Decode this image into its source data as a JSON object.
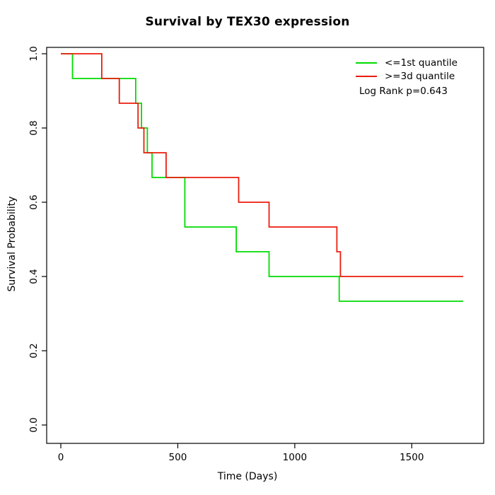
{
  "chart_data": {
    "type": "line",
    "subtype": "kaplan-meier-step",
    "title": "Survival by TEX30 expression",
    "xlabel": "Time (Days)",
    "ylabel": "Survival Probability",
    "annotation": "Log Rank p=0.643",
    "xlim": [
      0,
      1750
    ],
    "ylim": [
      0.0,
      1.0
    ],
    "xticks": [
      0,
      500,
      1000,
      1500
    ],
    "yticks": [
      0.0,
      0.2,
      0.4,
      0.6,
      0.8,
      1.0
    ],
    "ytick_labels": [
      "0.0",
      "0.2",
      "0.4",
      "0.6",
      "0.8",
      "1.0"
    ],
    "xtick_labels": [
      "0",
      "500",
      "1000",
      "1500"
    ],
    "grid": false,
    "legend_position": "top-right",
    "series": [
      {
        "name": "<=1st quantile",
        "color": "#00DC00",
        "start": [
          0,
          1.0
        ],
        "end_x": 1720,
        "events": [
          [
            50,
            0.9333
          ],
          [
            320,
            0.8667
          ],
          [
            345,
            0.8
          ],
          [
            370,
            0.7333
          ],
          [
            390,
            0.6667
          ],
          [
            530,
            0.5333
          ],
          [
            750,
            0.4667
          ],
          [
            890,
            0.4
          ],
          [
            1190,
            0.3333
          ]
        ]
      },
      {
        "name": ">=3d quantile",
        "color": "#EC1C0C",
        "start": [
          0,
          1.0
        ],
        "end_x": 1720,
        "events": [
          [
            175,
            0.9333
          ],
          [
            250,
            0.8667
          ],
          [
            330,
            0.8
          ],
          [
            355,
            0.7333
          ],
          [
            450,
            0.6667
          ],
          [
            760,
            0.6
          ],
          [
            890,
            0.5333
          ],
          [
            1180,
            0.4667
          ],
          [
            1195,
            0.4
          ]
        ]
      }
    ]
  }
}
